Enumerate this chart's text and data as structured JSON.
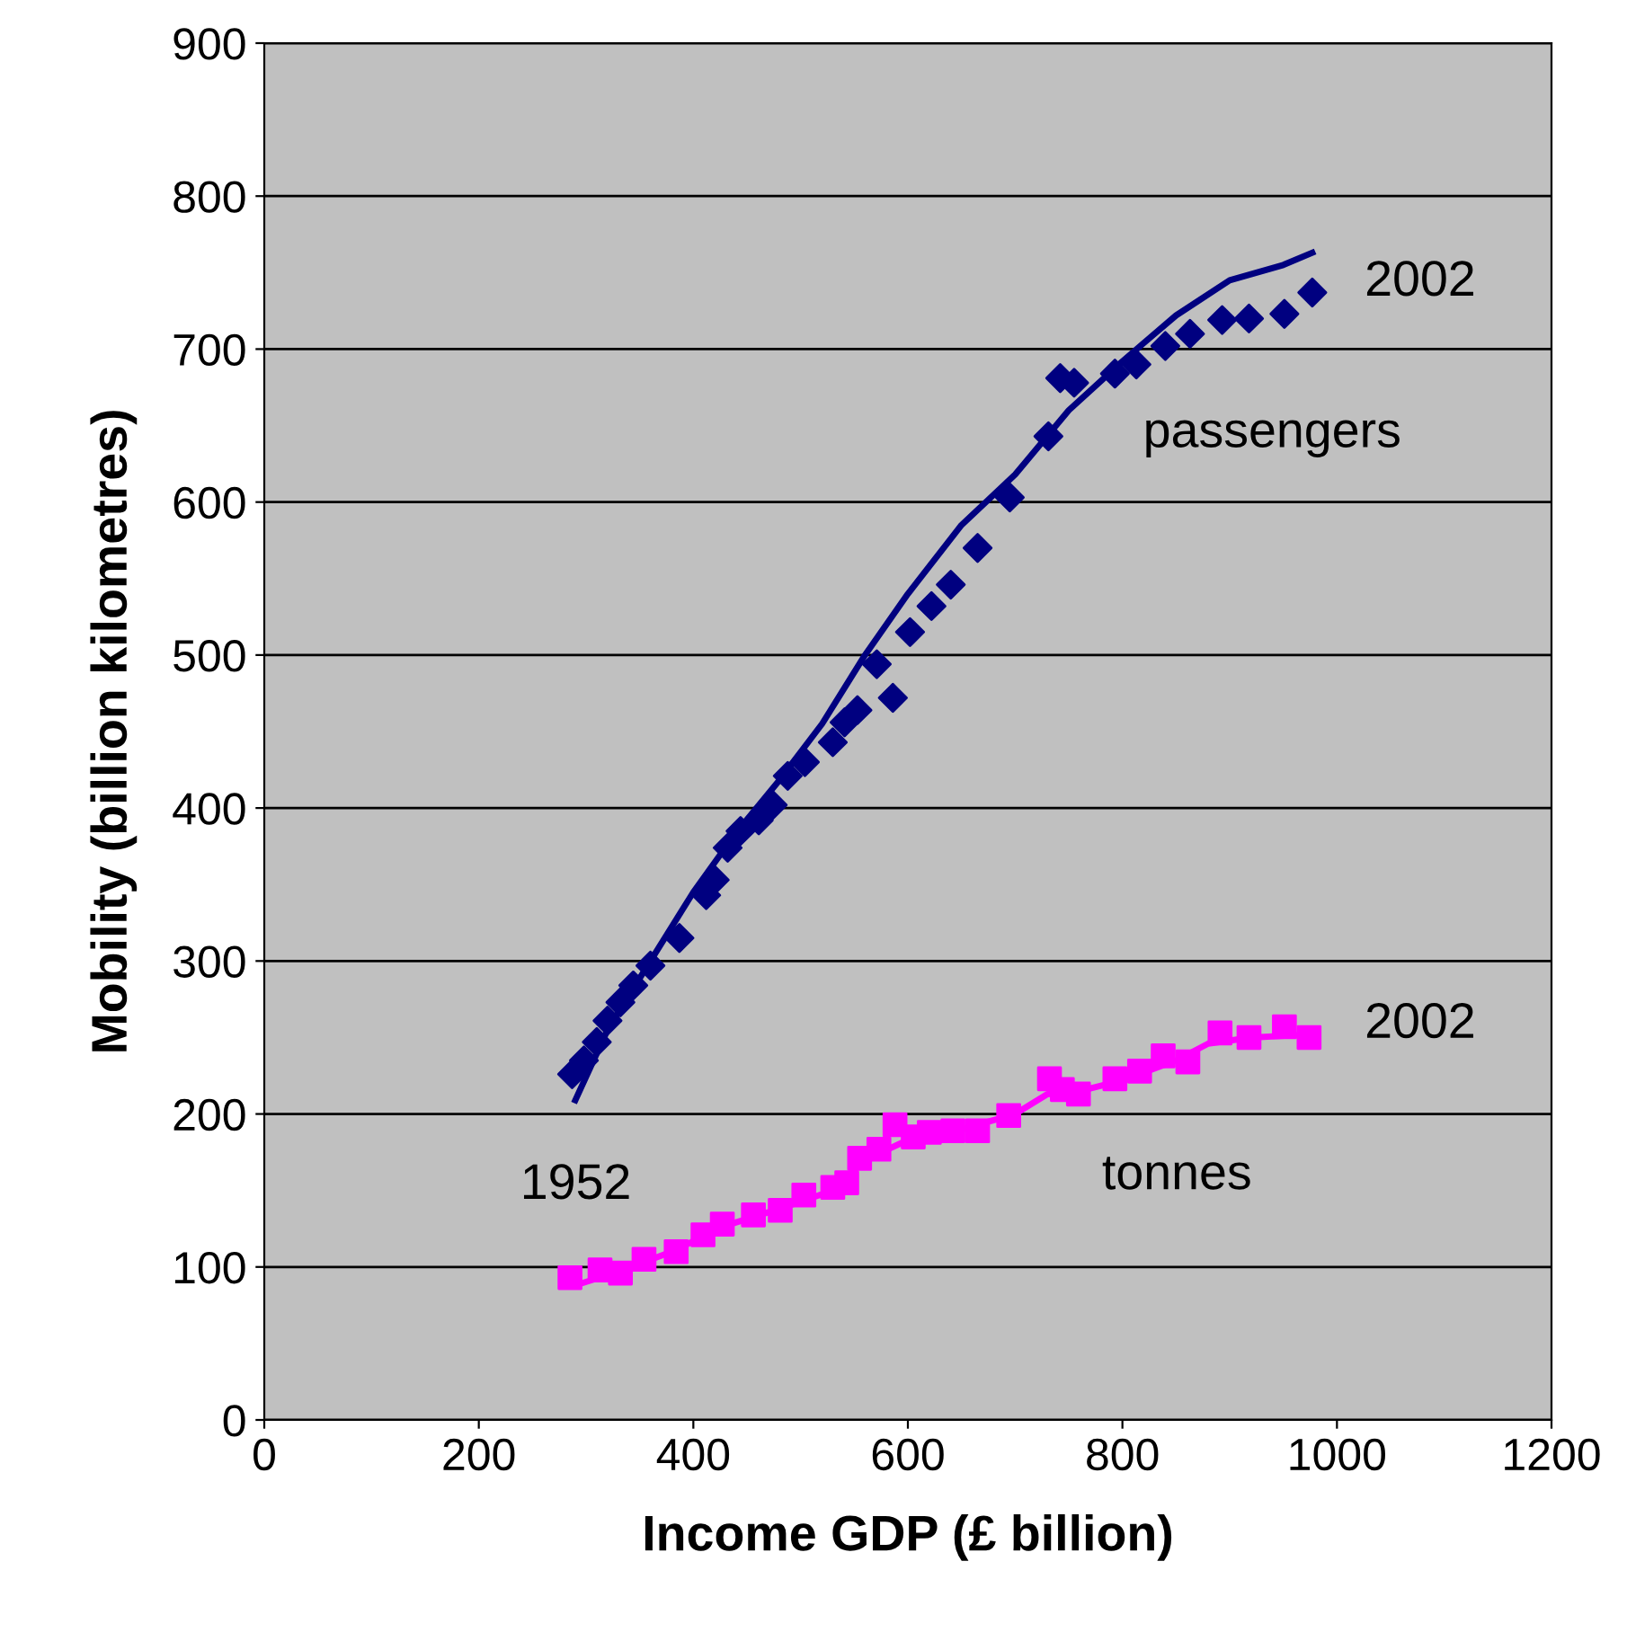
{
  "chart_data": {
    "type": "scatter",
    "xlabel": "Income GDP (£ billion)",
    "ylabel": "Mobility (billion kilometres)",
    "xlim": [
      0,
      1200
    ],
    "xticks": [
      0,
      200,
      400,
      600,
      800,
      1000,
      1200
    ],
    "ylim": [
      0,
      900
    ],
    "yticks": [
      0,
      100,
      200,
      300,
      400,
      500,
      600,
      700,
      800,
      900
    ],
    "grid": "y",
    "legend": false,
    "series": [
      {
        "marker": "diamond",
        "color": "#000080",
        "x": [
          287,
          298,
          310,
          320,
          332,
          344,
          360,
          387,
          412,
          420,
          432,
          444,
          461,
          474,
          488,
          504,
          530,
          541,
          553,
          571,
          586,
          602,
          622,
          640,
          665,
          695,
          731,
          742,
          755,
          793,
          813,
          840,
          863,
          893,
          918,
          951,
          977
        ],
        "values": [
          226,
          235,
          247,
          261,
          273,
          284,
          297,
          315,
          343,
          353,
          374,
          385,
          392,
          402,
          421,
          430,
          443,
          456,
          464,
          494,
          472,
          515,
          532,
          546,
          570,
          603,
          643,
          681,
          678,
          684,
          690,
          702,
          710,
          719,
          720,
          723,
          737
        ]
      },
      {
        "type": "line",
        "marker": "none",
        "color": "#000080",
        "x": [
          290,
          320,
          360,
          400,
          440,
          480,
          520,
          560,
          600,
          650,
          700,
          750,
          800,
          850,
          900,
          950,
          977
        ],
        "values": [
          209,
          255,
          300,
          345,
          384,
          418,
          455,
          500,
          540,
          585,
          618,
          660,
          692,
          722,
          745,
          755,
          763
        ]
      },
      {
        "marker": "square",
        "color": "#ff00ff",
        "x": [
          285,
          313,
          332,
          354,
          384,
          409,
          427,
          456,
          481,
          503,
          530,
          543,
          555,
          573,
          588,
          605,
          620,
          642,
          665,
          694,
          732,
          744,
          759,
          793,
          816,
          838,
          861,
          891,
          918,
          951,
          974
        ],
        "values": [
          93,
          98,
          96,
          105,
          110,
          121,
          128,
          134,
          137,
          147,
          152,
          155,
          171,
          177,
          193,
          185,
          188,
          189,
          189,
          199,
          223,
          216,
          213,
          223,
          228,
          238,
          234,
          253,
          250,
          257,
          250
        ]
      },
      {
        "type": "line",
        "marker": "none",
        "color": "#ff00ff",
        "x": [
          290,
          330,
          380,
          430,
          480,
          530,
          560,
          600,
          650,
          700,
          730,
          760,
          800,
          850,
          880,
          920,
          975
        ],
        "values": [
          88,
          97,
          110,
          127,
          138,
          150,
          170,
          183,
          190,
          200,
          213,
          215,
          222,
          235,
          246,
          250,
          252
        ]
      }
    ],
    "annotations": [
      "2002",
      "passengers",
      "2002",
      "tonnes",
      "1952"
    ]
  }
}
